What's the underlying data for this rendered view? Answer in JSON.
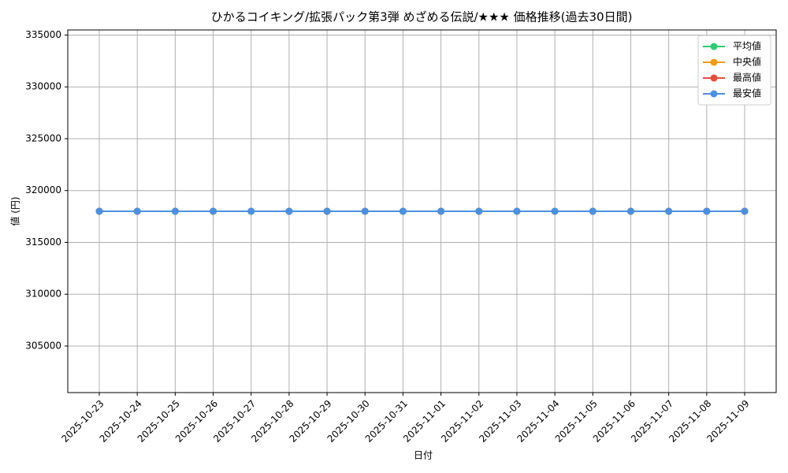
{
  "chart_data": {
    "type": "line",
    "title": "ひかるコイキング/拡張パック第3弾 めざめる伝説/★★★ 価格推移(過去30日間)",
    "x_label": "日付",
    "y_label": "値 (円)",
    "categories": [
      "2025-10-23",
      "2025-10-24",
      "2025-10-25",
      "2025-10-26",
      "2025-10-27",
      "2025-10-28",
      "2025-10-29",
      "2025-10-30",
      "2025-10-31",
      "2025-11-01",
      "2025-11-02",
      "2025-11-03",
      "2025-11-04",
      "2025-11-05",
      "2025-11-06",
      "2025-11-07",
      "2025-11-08",
      "2025-11-09"
    ],
    "series": [
      {
        "name": "平均値",
        "color": "#2ecc71",
        "values": [
          318000,
          318000,
          318000,
          318000,
          318000,
          318000,
          318000,
          318000,
          318000,
          318000,
          318000,
          318000,
          318000,
          318000,
          318000,
          318000,
          318000,
          318000
        ]
      },
      {
        "name": "中央値",
        "color": "#f39c12",
        "values": [
          318000,
          318000,
          318000,
          318000,
          318000,
          318000,
          318000,
          318000,
          318000,
          318000,
          318000,
          318000,
          318000,
          318000,
          318000,
          318000,
          318000,
          318000
        ]
      },
      {
        "name": "最高値",
        "color": "#e74c3c",
        "values": [
          318000,
          318000,
          318000,
          318000,
          318000,
          318000,
          318000,
          318000,
          318000,
          318000,
          318000,
          318000,
          318000,
          318000,
          318000,
          318000,
          318000,
          318000
        ]
      },
      {
        "name": "最安値",
        "color": "#4a90e2",
        "values": [
          318000,
          318000,
          318000,
          318000,
          318000,
          318000,
          318000,
          318000,
          318000,
          318000,
          318000,
          318000,
          318000,
          318000,
          318000,
          318000,
          318000,
          318000
        ]
      }
    ],
    "ylim": [
      300510,
      335490
    ],
    "yticks": [
      305000,
      310000,
      315000,
      320000,
      325000,
      330000,
      335000
    ],
    "grid": true,
    "legend": "upper right"
  }
}
